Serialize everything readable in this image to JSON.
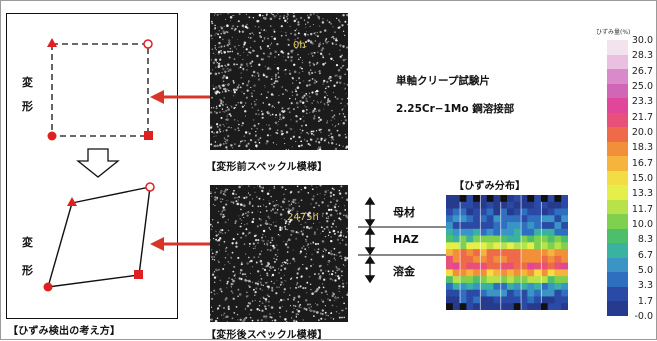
{
  "left_panel": {
    "deform_label_1": "変",
    "deform_label_2": "形",
    "deform_label_3": "変",
    "deform_label_4": "形",
    "caption": "【ひずみ検出の考え方】"
  },
  "speckle_before": {
    "time": "0h",
    "caption": "【変形前スペックル模様】"
  },
  "speckle_after": {
    "time": "2475h",
    "caption": "【変形後スペックル模様】"
  },
  "specimen": {
    "line1": "単軸クリープ試験片",
    "line2": "2.25Cr−1Mo 鋼溶接部"
  },
  "strain_map": {
    "title": "【ひずみ分布】",
    "regions": [
      "母材",
      "HAZ",
      "溶金"
    ]
  },
  "color_scale": {
    "title": "ひずみ量(%)",
    "ticks": [
      "30.0",
      "28.3",
      "26.7",
      "25.0",
      "23.3",
      "21.7",
      "20.0",
      "18.3",
      "16.7",
      "15.0",
      "13.3",
      "11.7",
      "10.0",
      "8.3",
      "6.7",
      "5.0",
      "3.3",
      "1.7",
      "-0.0"
    ],
    "colors": [
      "#f3e3ef",
      "#ebbfe0",
      "#d98bc9",
      "#d066b5",
      "#e0469a",
      "#e8507a",
      "#ee6a48",
      "#f2903a",
      "#f5b53c",
      "#f3dd44",
      "#e6ef4a",
      "#b8e24a",
      "#7ed04e",
      "#4dbf6a",
      "#39b3a0",
      "#3a94c6",
      "#2f6fc0",
      "#2a4aa6",
      "#263a8e"
    ]
  },
  "colors": {
    "arrow": "#d8352a",
    "marker": "#e02020"
  }
}
